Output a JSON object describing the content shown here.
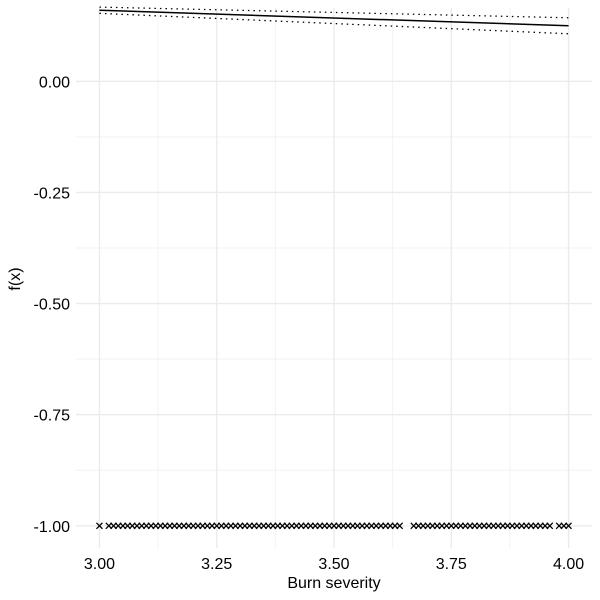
{
  "chart_data": {
    "type": "line",
    "title": "",
    "xlabel": "Burn severity",
    "ylabel": "f(x)",
    "xlim": [
      2.95,
      4.05
    ],
    "ylim": [
      -1.05,
      0.165
    ],
    "xticks": [
      3.0,
      3.25,
      3.5,
      3.75,
      4.0
    ],
    "xtick_labels": [
      "3.00",
      "3.25",
      "3.50",
      "3.75",
      "4.00"
    ],
    "yticks": [
      0.0,
      -0.25,
      -0.5,
      -0.75,
      -1.0
    ],
    "ytick_labels": [
      "0.00",
      "-0.25",
      "-0.50",
      "-0.75",
      "-1.00"
    ],
    "grid": true,
    "legend": "none",
    "series": [
      {
        "style": "solid",
        "x": [
          3.0,
          4.0
        ],
        "y": [
          0.16,
          0.125
        ]
      },
      {
        "style": "dotted",
        "x": [
          3.0,
          4.0
        ],
        "y": [
          0.167,
          0.143
        ]
      },
      {
        "style": "dotted",
        "x": [
          3.0,
          4.0
        ],
        "y": [
          0.153,
          0.107
        ]
      }
    ],
    "rug": {
      "marker": "x",
      "y": -1.0,
      "x": [
        3.0,
        3.02,
        3.03,
        3.04,
        3.05,
        3.06,
        3.07,
        3.08,
        3.09,
        3.1,
        3.11,
        3.12,
        3.13,
        3.14,
        3.15,
        3.16,
        3.17,
        3.18,
        3.19,
        3.2,
        3.21,
        3.22,
        3.23,
        3.24,
        3.25,
        3.26,
        3.27,
        3.28,
        3.29,
        3.3,
        3.31,
        3.32,
        3.33,
        3.34,
        3.35,
        3.36,
        3.37,
        3.38,
        3.39,
        3.4,
        3.41,
        3.42,
        3.43,
        3.44,
        3.45,
        3.46,
        3.47,
        3.48,
        3.49,
        3.5,
        3.51,
        3.52,
        3.53,
        3.54,
        3.55,
        3.56,
        3.57,
        3.58,
        3.59,
        3.6,
        3.61,
        3.62,
        3.63,
        3.64,
        3.67,
        3.68,
        3.69,
        3.7,
        3.71,
        3.72,
        3.73,
        3.74,
        3.75,
        3.76,
        3.77,
        3.78,
        3.79,
        3.8,
        3.81,
        3.82,
        3.83,
        3.84,
        3.85,
        3.86,
        3.87,
        3.88,
        3.89,
        3.9,
        3.91,
        3.92,
        3.93,
        3.94,
        3.95,
        3.96,
        3.98,
        3.99,
        4.0
      ]
    }
  }
}
